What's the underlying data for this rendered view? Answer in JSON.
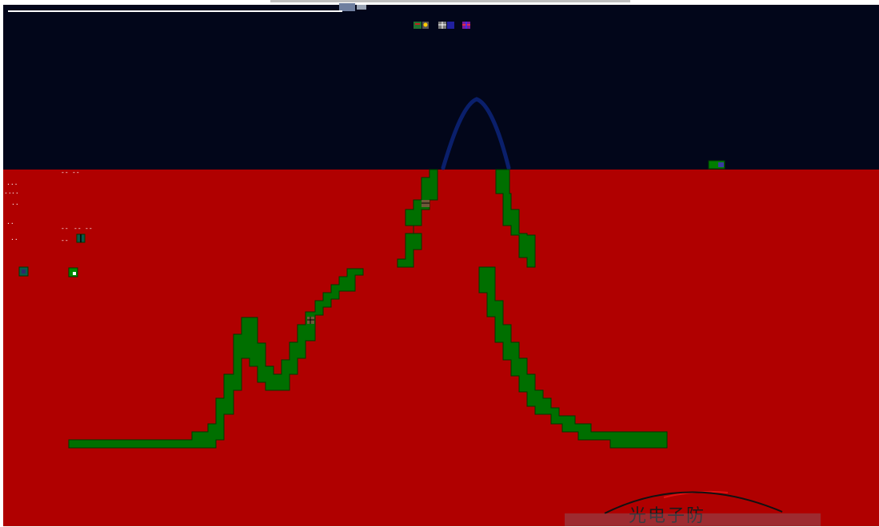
{
  "colors": {
    "sky": "#02061a",
    "ground": "#b00000",
    "terrain": "#006f00",
    "terrain_edge": "#003a00",
    "trajectory": "#0a1f6b",
    "stamp_red": "#e01010",
    "stamp_ink": "#111111"
  },
  "top_strip_icons": [
    "flag-icon",
    "radiation-icon",
    "grid-icon",
    "cross-icon"
  ],
  "hud": {
    "labels": [
      "--",
      "--",
      "...",
      "..",
      "..",
      "..",
      "..",
      "--",
      "--",
      "--",
      "..",
      "--"
    ]
  },
  "watermark": {
    "text": "光电子防"
  }
}
